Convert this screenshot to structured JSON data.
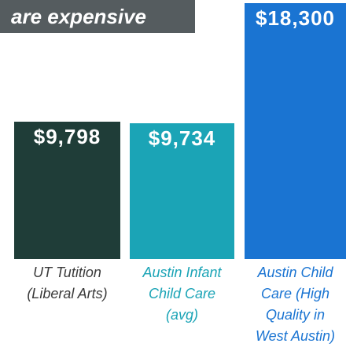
{
  "chart_data": {
    "type": "bar",
    "title": "are expensive",
    "categories": [
      "UT Tutition (Liberal Arts)",
      "Austin Infant Child Care (avg)",
      "Austin Child Care (High Quality in West Austin)"
    ],
    "values": [
      9798,
      9734,
      18300
    ],
    "value_labels": [
      "$9,798",
      "$9,734",
      "$18,300"
    ],
    "colors": [
      "#1f3d38",
      "#1ba4b6",
      "#1a74d2"
    ],
    "label_colors": [
      "#3a3a3a",
      "#1ba4b6",
      "#1a74d2"
    ]
  }
}
